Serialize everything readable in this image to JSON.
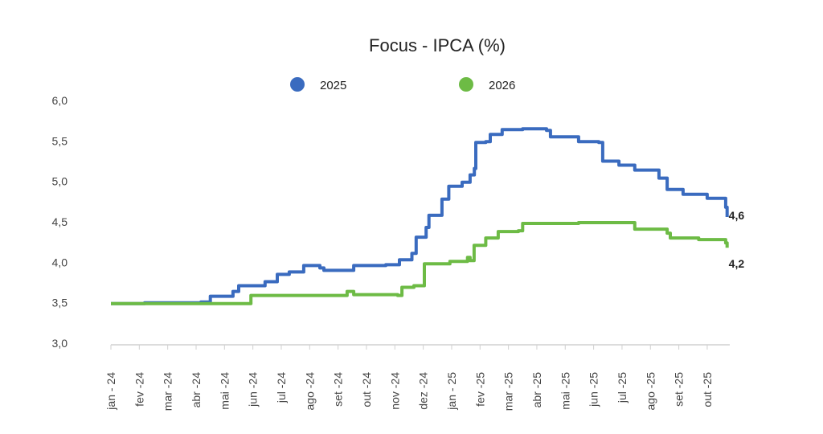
{
  "chart_data": {
    "type": "line",
    "title": "Focus - IPCA (%)",
    "xlabel": "",
    "ylabel": "",
    "ylim": [
      3.0,
      6.0
    ],
    "yticks": [
      "3,0",
      "3,5",
      "4,0",
      "4,5",
      "5,0",
      "5,5",
      "6,0"
    ],
    "ytick_values": [
      3.0,
      3.5,
      4.0,
      4.5,
      5.0,
      5.5,
      6.0
    ],
    "categories": [
      "jan - 24",
      "fev -24",
      "mar -24",
      "abr -24",
      "mai -24",
      "jun -24",
      "jul -24",
      "ago -24",
      "set -24",
      "out -24",
      "nov -24",
      "dez -24",
      "jan - 25",
      "fev -25",
      "mar -25",
      "abr -25",
      "mai -25",
      "jun -25",
      "jul -25",
      "ago -25",
      "set -25",
      "out -25"
    ],
    "x_unit": "months since jan-24",
    "xlim": [
      0,
      21.7
    ],
    "grid": false,
    "legend_position": "top",
    "series": [
      {
        "name": "2025",
        "color": "#3a6bbf",
        "end_label": "4,6",
        "x": [
          0,
          1.19,
          3.17,
          3.5,
          4.3,
          4.5,
          5.43,
          5.86,
          6.28,
          6.79,
          7.36,
          7.5,
          8.55,
          9.68,
          10.16,
          10.6,
          10.75,
          11.1,
          11.2,
          11.5,
          11.66,
          11.9,
          12.37,
          12.65,
          12.8,
          12.85,
          13.2,
          13.36,
          13.78,
          14.5,
          15.34,
          15.48,
          16.47,
          17.18,
          17.32,
          17.89,
          18.45,
          19.3,
          19.59,
          20.15,
          21.0,
          21.65,
          21.7
        ],
        "y": [
          3.49,
          3.5,
          3.51,
          3.58,
          3.64,
          3.71,
          3.76,
          3.85,
          3.88,
          3.96,
          3.93,
          3.9,
          3.96,
          3.97,
          4.03,
          4.11,
          4.31,
          4.43,
          4.58,
          4.58,
          4.78,
          4.94,
          4.99,
          5.08,
          5.16,
          5.48,
          5.49,
          5.58,
          5.64,
          5.65,
          5.63,
          5.55,
          5.49,
          5.48,
          5.25,
          5.2,
          5.14,
          5.04,
          4.9,
          4.84,
          4.79,
          4.68,
          4.56
        ]
      },
      {
        "name": "2026",
        "color": "#6dbb45",
        "end_label": "4,2",
        "x": [
          0,
          4.53,
          4.93,
          8.27,
          8.32,
          8.55,
          10.1,
          10.25,
          10.67,
          11.04,
          11.94,
          12.56,
          12.65,
          12.79,
          13.2,
          13.64,
          14.35,
          14.5,
          16.47,
          18.3,
          18.45,
          19.59,
          19.7,
          20.7,
          21.65,
          21.7
        ],
        "y": [
          3.49,
          3.49,
          3.59,
          3.59,
          3.64,
          3.6,
          3.59,
          3.69,
          3.71,
          3.98,
          4.01,
          4.06,
          4.02,
          4.21,
          4.3,
          4.38,
          4.39,
          4.48,
          4.49,
          4.49,
          4.41,
          4.36,
          4.3,
          4.28,
          4.24,
          4.18
        ]
      }
    ]
  }
}
